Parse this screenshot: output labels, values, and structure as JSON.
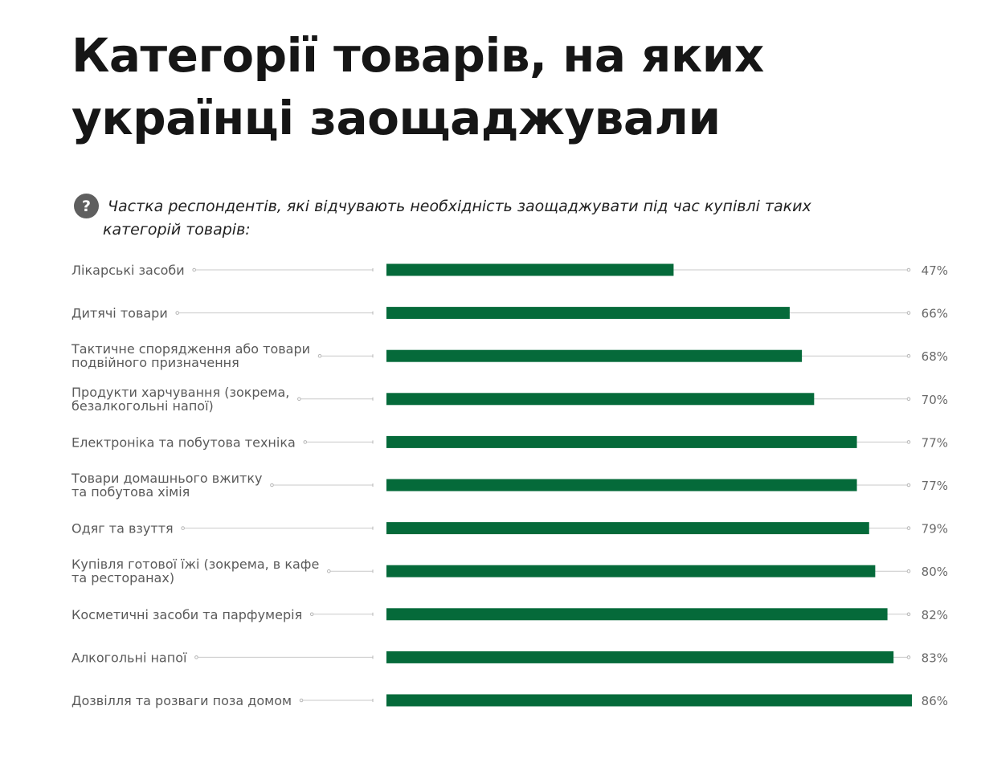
{
  "title": "Категорії товарів, на яких українці заощаджували",
  "subtitle": "Частка респондентів, які відчувають необхідність заощаджувати під час купівлі таких категорій товарів:",
  "icons": {
    "help": "question-circle-icon"
  },
  "colors": {
    "bar": "#056a3a",
    "track": "#c9c9c9",
    "label": "#5a5a5a",
    "title": "#161616"
  },
  "chart_data": {
    "type": "bar",
    "orientation": "horizontal",
    "title": "Категорії товарів, на яких українці заощаджували",
    "subtitle": "Частка респондентів, які відчувають необхідність заощаджувати під час купівлі таких категорій товарів:",
    "xlim": [
      0,
      86
    ],
    "grid": false,
    "categories": [
      "Лікарські засоби",
      "Дитячі товари",
      "Тактичне спорядження або товари подвійного призначення",
      "Продукти харчування (зокрема, безалкогольні напої)",
      "Електроніка та побутова техніка",
      "Товари домашнього вжитку та побутова хімія",
      "Одяг та взуття",
      "Купівля готової їжі (зокрема, в кафе та ресторанах)",
      "Косметичні засоби та парфумерія",
      "Алкогольні напої",
      "Дозвілля та розваги поза домом"
    ],
    "category_lines": [
      [
        "Лікарські засоби"
      ],
      [
        "Дитячі товари"
      ],
      [
        "Тактичне спорядження або товари",
        "подвійного призначення"
      ],
      [
        "Продукти харчування (зокрема,",
        "безалкогольні напої)"
      ],
      [
        "Електроніка та побутова техніка"
      ],
      [
        "Товари домашнього вжитку",
        "та побутова хімія"
      ],
      [
        "Одяг та взуття"
      ],
      [
        "Купівля готової їжі (зокрема, в кафе",
        "та ресторанах)"
      ],
      [
        "Косметичні засоби та парфумерія"
      ],
      [
        "Алкогольні напої"
      ],
      [
        "Дозвілля та розваги поза домом"
      ]
    ],
    "values": [
      47,
      66,
      68,
      70,
      77,
      77,
      79,
      80,
      82,
      83,
      86
    ],
    "value_labels": [
      "47%",
      "66%",
      "68%",
      "70%",
      "77%",
      "77%",
      "79%",
      "80%",
      "82%",
      "83%",
      "86%"
    ]
  }
}
